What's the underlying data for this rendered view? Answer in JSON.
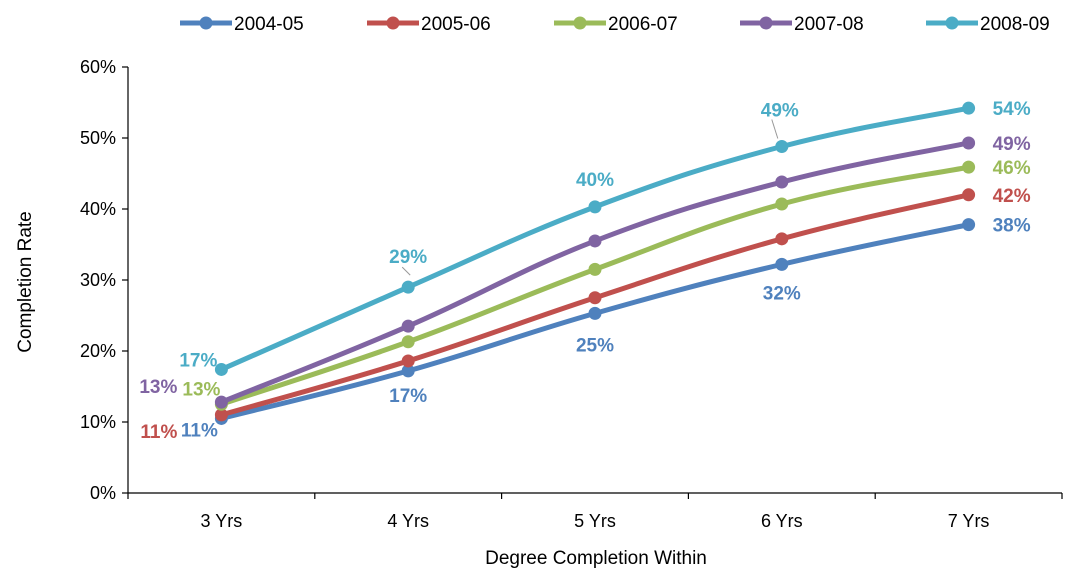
{
  "chart_data": {
    "type": "line",
    "xlabel": "Degree Completion Within",
    "ylabel": "Completion Rate",
    "categories": [
      "3 Yrs",
      "4 Yrs",
      "5 Yrs",
      "6 Yrs",
      "7 Yrs"
    ],
    "ylim": [
      0,
      0.6
    ],
    "yticks": [
      "0%",
      "10%",
      "20%",
      "30%",
      "40%",
      "50%",
      "60%"
    ],
    "grid": false,
    "legend_position": "top",
    "series": [
      {
        "name": "2004-05",
        "color": "#4F81BD",
        "values": [
          0.105,
          0.172,
          0.253,
          0.322,
          0.378
        ],
        "labels": [
          "11%",
          "17%",
          "25%",
          "32%",
          "38%"
        ]
      },
      {
        "name": "2005-06",
        "color": "#C0504D",
        "values": [
          0.11,
          0.186,
          0.275,
          0.358,
          0.42
        ],
        "labels": [
          "11%",
          "",
          "",
          "",
          "42%"
        ]
      },
      {
        "name": "2006-07",
        "color": "#9BBB59",
        "values": [
          0.125,
          0.213,
          0.315,
          0.407,
          0.459
        ],
        "labels": [
          "13%",
          "",
          "",
          "",
          "46%"
        ]
      },
      {
        "name": "2007-08",
        "color": "#8064A2",
        "values": [
          0.128,
          0.235,
          0.355,
          0.438,
          0.493
        ],
        "labels": [
          "13%",
          "",
          "",
          "",
          "49%"
        ]
      },
      {
        "name": "2008-09",
        "color": "#4BACC6",
        "values": [
          0.174,
          0.29,
          0.403,
          0.488,
          0.542
        ],
        "labels": [
          "17%",
          "29%",
          "40%",
          "49%",
          "54%"
        ]
      }
    ]
  }
}
